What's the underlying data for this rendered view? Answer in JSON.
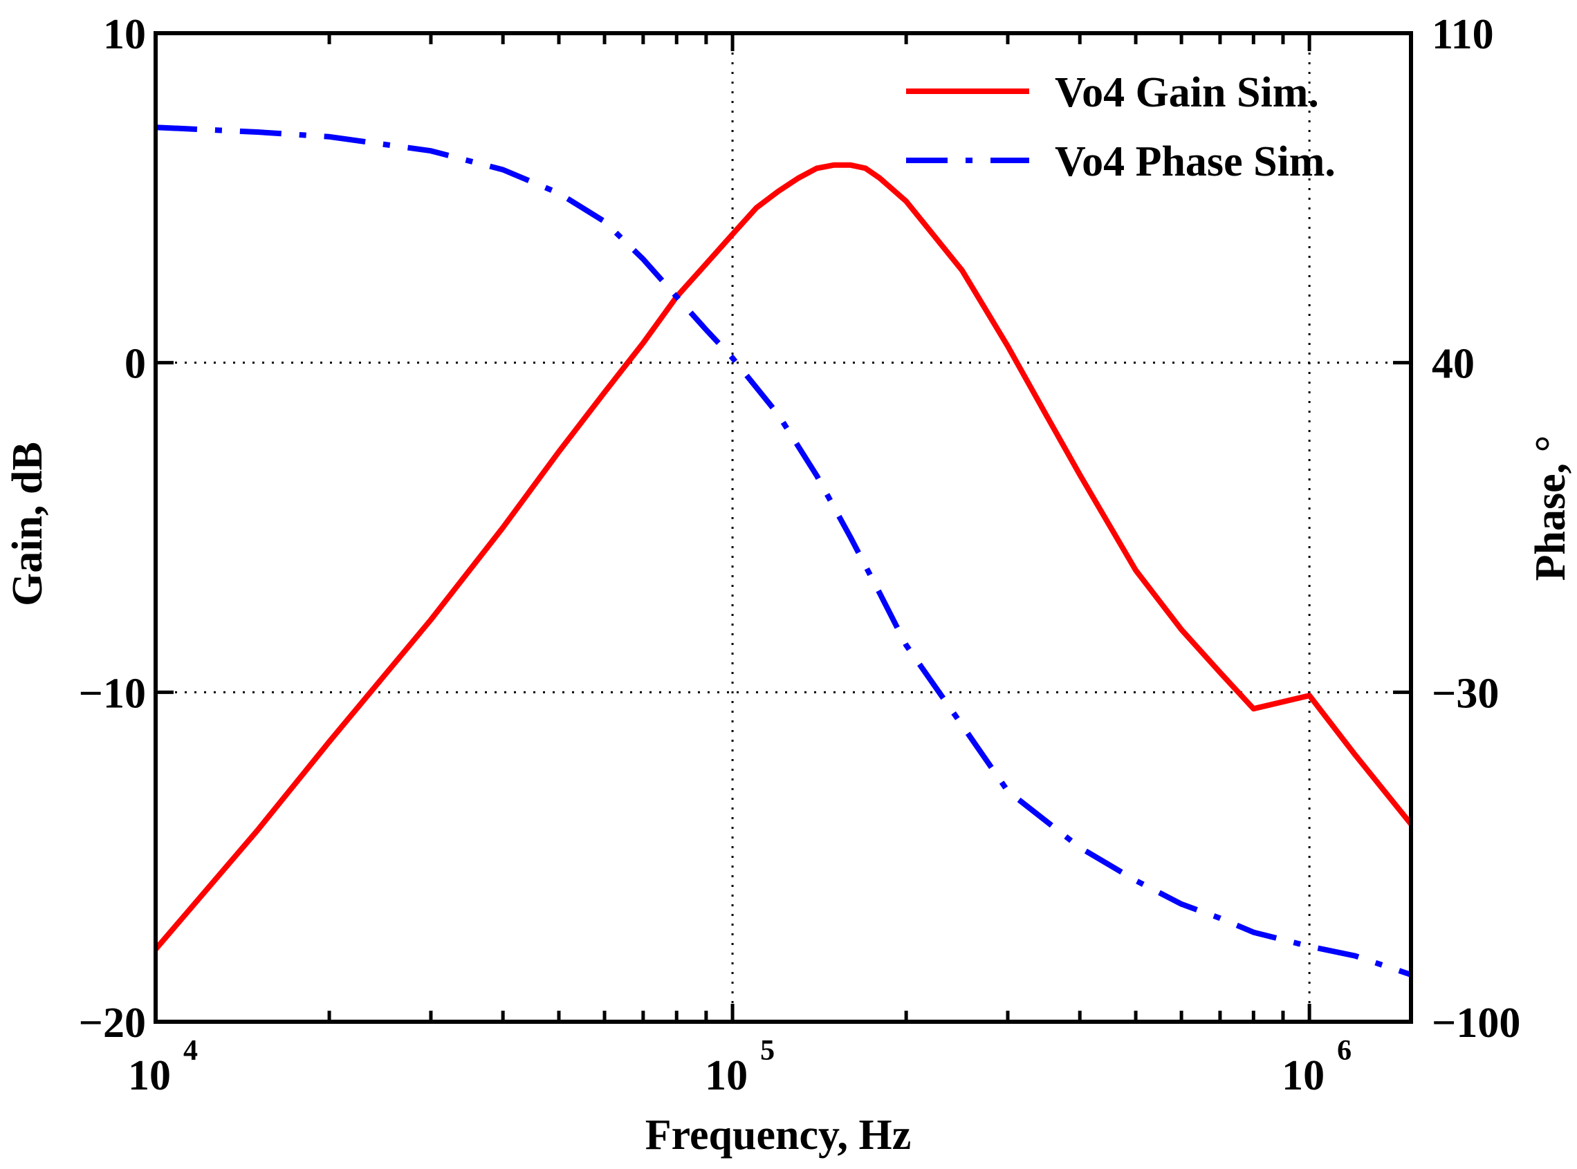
{
  "chart_data": {
    "type": "line",
    "title": "",
    "xlabel": "Frequency, Hz",
    "ylabel": "Gain, dB",
    "y2label": "Phase, °",
    "xscale": "log",
    "xlim": [
      10000,
      1500000
    ],
    "ylim": [
      -20,
      10
    ],
    "y2lim": [
      -100,
      110
    ],
    "grid": true,
    "legend_position": "top-right",
    "x_ticks": [
      {
        "base": "10",
        "exp": "4",
        "value": 10000
      },
      {
        "base": "10",
        "exp": "5",
        "value": 100000
      },
      {
        "base": "10",
        "exp": "6",
        "value": 1000000
      }
    ],
    "y_ticks": [
      {
        "label": "10",
        "value": 10
      },
      {
        "label": "0",
        "value": 0
      },
      {
        "label": "−10",
        "value": -10
      },
      {
        "label": "−20",
        "value": -20
      }
    ],
    "y2_ticks": [
      {
        "label": "110",
        "value": 110
      },
      {
        "label": "40",
        "value": 40
      },
      {
        "label": "−30",
        "value": -30
      },
      {
        "label": "−100",
        "value": -100
      }
    ],
    "series": [
      {
        "name": "Vo4 Gain Sim.",
        "axis": "left",
        "color": "#ff0000",
        "style": "solid",
        "x": [
          10000,
          15000,
          20000,
          30000,
          40000,
          50000,
          60000,
          70000,
          80000,
          90000,
          100000,
          110000,
          120000,
          130000,
          140000,
          150000,
          160000,
          170000,
          180000,
          200000,
          250000,
          300000,
          350000,
          400000,
          500000,
          600000,
          700000,
          800000,
          1000000,
          1200000,
          1500000
        ],
        "y": [
          -17.8,
          -14.2,
          -11.5,
          -7.8,
          -5.0,
          -2.7,
          -0.9,
          0.6,
          2.0,
          3.0,
          3.9,
          4.7,
          5.2,
          5.6,
          5.9,
          6.0,
          6.0,
          5.9,
          5.6,
          4.9,
          2.8,
          0.5,
          -1.6,
          -3.4,
          -6.3,
          -8.1,
          -9.4,
          -10.5,
          -10.1,
          -11.9,
          -14.0
        ]
      },
      {
        "name": "Vo4 Phase Sim.",
        "axis": "right",
        "color": "#0000ff",
        "style": "dashdot",
        "x": [
          10000,
          15000,
          20000,
          30000,
          40000,
          50000,
          60000,
          70000,
          80000,
          90000,
          100000,
          120000,
          140000,
          160000,
          180000,
          200000,
          250000,
          300000,
          400000,
          500000,
          600000,
          700000,
          800000,
          1000000,
          1200000,
          1500000
        ],
        "y": [
          90,
          89,
          88,
          85,
          81,
          76,
          70,
          62,
          54,
          47,
          41,
          29,
          16,
          3,
          -9,
          -20,
          -37,
          -51,
          -63,
          -70,
          -75,
          -78,
          -81,
          -84,
          -86,
          -90
        ]
      }
    ]
  },
  "legend": {
    "gain_label": "Vo4 Gain Sim.",
    "phase_label": "Vo4 Phase Sim."
  },
  "colors": {
    "gain": "#ff0000",
    "phase": "#0000ff",
    "axis": "#000000"
  }
}
